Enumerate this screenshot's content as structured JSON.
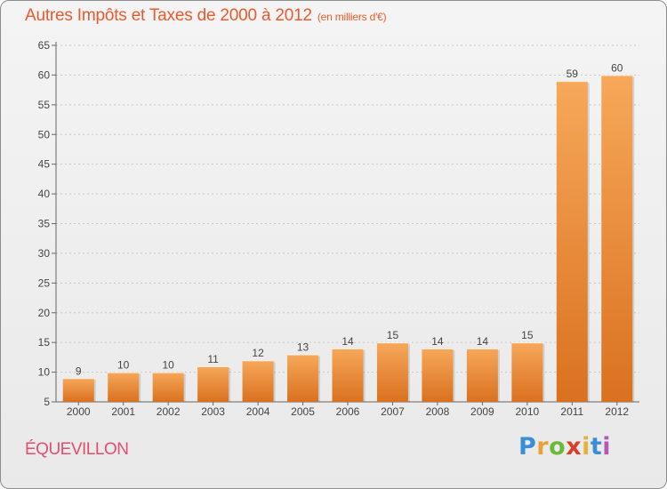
{
  "header": {
    "title": "Autres Impôts et Taxes de 2000 à 2012",
    "subtitle": "(en milliers d'€)"
  },
  "commune": "ÉQUEVILLON",
  "brand": {
    "letters": [
      "P",
      "r",
      "o",
      "x",
      "i",
      "t",
      "i"
    ],
    "colors": [
      "#3a8ed8",
      "#e9a038",
      "#6cb83a",
      "#d8402a",
      "#e2b33a",
      "#3a8ed8",
      "#b35ab0"
    ]
  },
  "colors": {
    "bar_light": "#f7a85a",
    "bar_dark": "#d9711f",
    "grid": "#c8c8c8",
    "axis": "#666666",
    "text": "#444444"
  },
  "chart_data": {
    "type": "bar",
    "categories": [
      "2000",
      "2001",
      "2002",
      "2003",
      "2004",
      "2005",
      "2006",
      "2007",
      "2008",
      "2009",
      "2010",
      "2011",
      "2012"
    ],
    "values": [
      9,
      10,
      10,
      11,
      12,
      13,
      14,
      15,
      14,
      14,
      15,
      59,
      60
    ],
    "ylim": [
      5,
      65
    ],
    "yticks": [
      5,
      10,
      15,
      20,
      25,
      30,
      35,
      40,
      45,
      50,
      55,
      60,
      65
    ],
    "grid": true,
    "data_labels": true
  }
}
